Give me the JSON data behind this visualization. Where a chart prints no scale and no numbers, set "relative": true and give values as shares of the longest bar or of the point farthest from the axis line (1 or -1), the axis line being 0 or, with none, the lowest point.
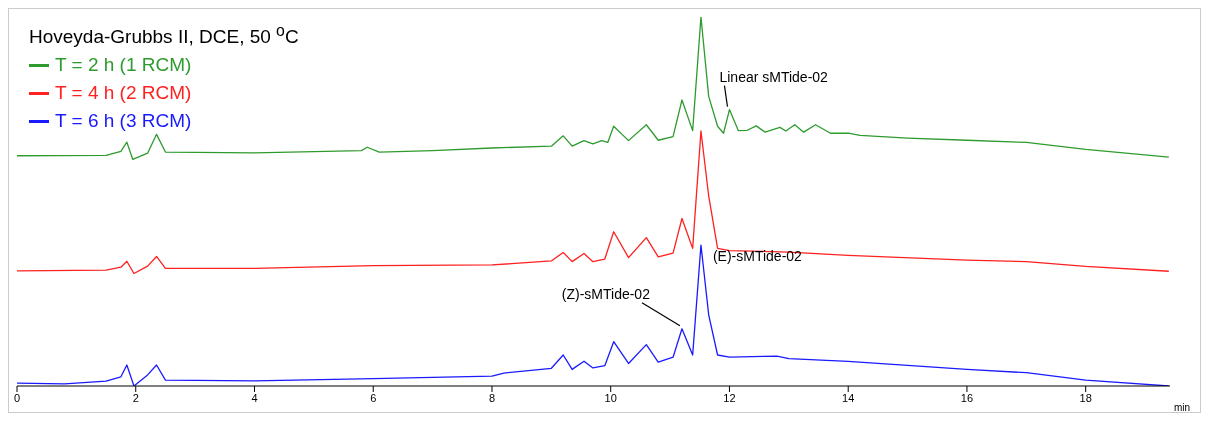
{
  "chart_data": {
    "type": "line",
    "title": "Hoveyda-Grubbs II, DCE, 50 $^{o}$C",
    "xlabel": "min",
    "relative": true,
    "legend": "top left",
    "marker": "none",
    "line_style": "solid",
    "xlim": [
      0,
      19.42
    ],
    "xticks": [
      0,
      2,
      4,
      6,
      8,
      10,
      12,
      14,
      16,
      18
    ],
    "series": [
      {
        "name": "T = 2 h (1 RCM)",
        "color": "#2e9b2e",
        "x": [
          0,
          1.5,
          1.75,
          1.85,
          1.95,
          2.2,
          2.35,
          2.5,
          4,
          5.8,
          5.9,
          6.1,
          7,
          8,
          9,
          9.2,
          9.35,
          9.55,
          9.7,
          9.85,
          9.95,
          10.05,
          10.3,
          10.6,
          10.8,
          11.05,
          11.2,
          11.38,
          11.52,
          11.65,
          11.8,
          11.9,
          12,
          12.15,
          12.3,
          12.45,
          12.6,
          12.85,
          12.95,
          13.1,
          13.25,
          13.45,
          13.7,
          14,
          14.2,
          15,
          16,
          17,
          18,
          19.4
        ],
        "values": [
          0.624,
          0.625,
          0.636,
          0.661,
          0.614,
          0.631,
          0.682,
          0.634,
          0.632,
          0.638,
          0.647,
          0.634,
          0.638,
          0.645,
          0.65,
          0.678,
          0.65,
          0.665,
          0.656,
          0.665,
          0.66,
          0.704,
          0.665,
          0.708,
          0.666,
          0.676,
          0.775,
          0.692,
          1,
          0.785,
          0.704,
          0.685,
          0.749,
          0.692,
          0.693,
          0.705,
          0.688,
          0.701,
          0.691,
          0.708,
          0.688,
          0.708,
          0.685,
          0.685,
          0.679,
          0.672,
          0.666,
          0.66,
          0.641,
          0.62
        ]
      },
      {
        "name": "T = 4 h (2 RCM)",
        "color": "#ff2020",
        "x": [
          0,
          1.5,
          1.75,
          1.85,
          1.97,
          2.2,
          2.35,
          2.5,
          4,
          6,
          8,
          9,
          9.2,
          9.35,
          9.55,
          9.7,
          9.9,
          10.05,
          10.3,
          10.6,
          10.8,
          11.05,
          11.2,
          11.38,
          11.52,
          11.65,
          11.8,
          12,
          13,
          14,
          16,
          17,
          18,
          19.4
        ],
        "values": [
          0.312,
          0.314,
          0.322,
          0.338,
          0.305,
          0.325,
          0.351,
          0.319,
          0.319,
          0.326,
          0.328,
          0.339,
          0.362,
          0.337,
          0.359,
          0.337,
          0.344,
          0.418,
          0.348,
          0.402,
          0.35,
          0.36,
          0.454,
          0.373,
          0.691,
          0.515,
          0.373,
          0.367,
          0.363,
          0.354,
          0.341,
          0.337,
          0.324,
          0.311
        ]
      },
      {
        "name": "T = 6 h (3 RCM)",
        "color": "#1a1aff",
        "x": [
          0,
          0.8,
          1.5,
          1.75,
          1.85,
          1.97,
          2.2,
          2.35,
          2.5,
          4,
          6,
          8,
          8.2,
          9,
          9.2,
          9.35,
          9.55,
          9.7,
          9.9,
          10.05,
          10.3,
          10.6,
          10.8,
          11.05,
          11.2,
          11.38,
          11.52,
          11.65,
          11.8,
          12,
          12.8,
          13,
          14,
          15,
          16,
          17,
          18,
          19.4
        ],
        "values": [
          0.008,
          0.006,
          0.013,
          0.025,
          0.057,
          0,
          0.03,
          0.057,
          0.016,
          0.014,
          0.02,
          0.027,
          0.035,
          0.048,
          0.084,
          0.045,
          0.067,
          0.049,
          0.055,
          0.12,
          0.061,
          0.112,
          0.065,
          0.078,
          0.155,
          0.084,
          0.382,
          0.193,
          0.084,
          0.078,
          0.081,
          0.074,
          0.067,
          0.056,
          0.045,
          0.036,
          0.016,
          0
        ]
      }
    ],
    "annotations": [
      {
        "text": "Linear sMTide-02",
        "x": 12,
        "y": 0.749
      },
      {
        "text": "(Z)-sMTide-02",
        "x": 11.2,
        "y": 0.155
      },
      {
        "text": "(E)-sMTide-02",
        "x": 11.52,
        "y": 0.382
      }
    ]
  }
}
